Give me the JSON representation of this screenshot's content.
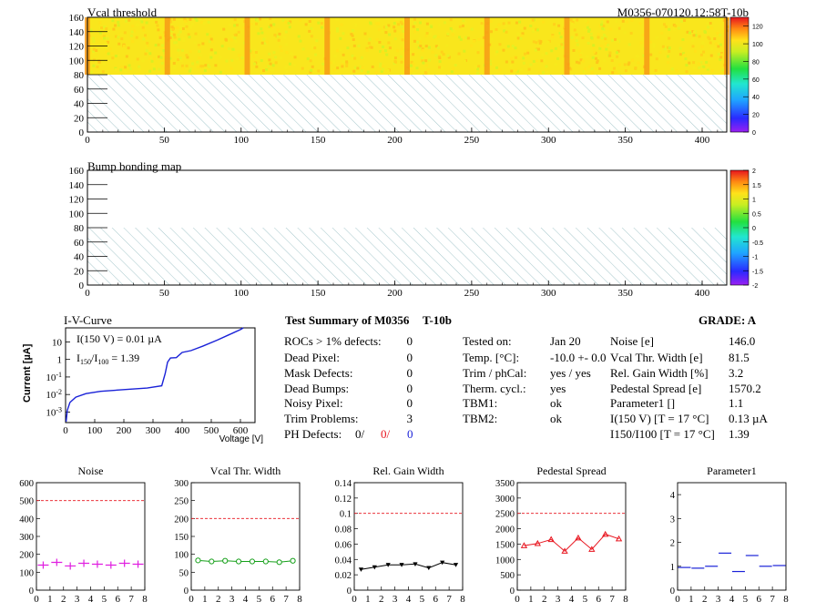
{
  "maps": [
    {
      "title": "Vcal threshold",
      "id_label": "M0356-070120.12:58T-10b",
      "x_ticks": [
        "0",
        "50",
        "100",
        "150",
        "200",
        "250",
        "300",
        "350",
        "400"
      ],
      "y_ticks": [
        "0",
        "20",
        "40",
        "60",
        "80",
        "100",
        "120",
        "140",
        "160"
      ],
      "xlim": [
        0,
        416
      ],
      "ylim": [
        0,
        160
      ],
      "hatch_below": 80,
      "roc_boundaries": [
        52,
        104,
        156,
        208,
        260,
        312,
        364
      ],
      "palette_labels": [
        "0",
        "20",
        "40",
        "60",
        "80",
        "100",
        "120"
      ],
      "palette_range": [
        0,
        130
      ],
      "level": 100,
      "colors": {
        "low": "#9a1ff2",
        "high": "#e8141e"
      }
    },
    {
      "title": "Bump bonding map",
      "x_ticks": [
        "0",
        "50",
        "100",
        "150",
        "200",
        "250",
        "300",
        "350",
        "400"
      ],
      "y_ticks": [
        "0",
        "20",
        "40",
        "60",
        "80",
        "100",
        "120",
        "140",
        "160"
      ],
      "xlim": [
        0,
        416
      ],
      "ylim": [
        0,
        160
      ],
      "hatch_below": 80,
      "palette_labels": [
        "-2",
        "-1.5",
        "-1",
        "-0.5",
        "0",
        "0.5",
        "1",
        "1.5",
        "2"
      ],
      "palette_range": [
        -2,
        2
      ]
    }
  ],
  "iv": {
    "title": "I-V-Curve",
    "ylabel": "Current [µA]",
    "xlabel": "Voltage [V]",
    "x_ticks": [
      "0",
      "100",
      "200",
      "300",
      "400",
      "500",
      "600"
    ],
    "y_ticks": [
      "10^-3",
      "10^-2",
      "10^-1",
      "1",
      "10"
    ],
    "note1": "I(150 V) = 0.01 µA",
    "note2_main": "I",
    "note2_sub1": "150",
    "note2_mid": "/I",
    "note2_sub2": "100",
    "note2_val": "=  1.39"
  },
  "summary": {
    "heading": "Test Summary of M0356",
    "trim_label": "T-10b",
    "grade": "GRADE:  A",
    "left": [
      {
        "label": "ROCs > 1% defects:",
        "value": "0"
      },
      {
        "label": "Dead Pixel:",
        "value": "0"
      },
      {
        "label": "Mask Defects:",
        "value": "0"
      },
      {
        "label": "Dead Bumps:",
        "value": "0"
      },
      {
        "label": "Noisy Pixel:",
        "value": "0"
      },
      {
        "label": "Trim Problems:",
        "value": "3"
      }
    ],
    "ph_label": "PH Defects:",
    "ph_values": [
      "0/",
      "0/",
      "0"
    ],
    "middle": [
      {
        "label": "Tested on:",
        "value": "Jan 20"
      },
      {
        "label": "Temp. [°C]:",
        "value": "-10.0 +- 0.0"
      },
      {
        "label": "Trim / phCal:",
        "value": "yes / yes"
      },
      {
        "label": "Therm. cycl.:",
        "value": "yes"
      },
      {
        "label": "TBM1:",
        "value": "ok"
      },
      {
        "label": "TBM2:",
        "value": "ok"
      }
    ],
    "right": [
      {
        "label": "Noise [e]",
        "value": "146.0"
      },
      {
        "label": "Vcal Thr. Width [e]",
        "value": "81.5"
      },
      {
        "label": "Rel. Gain Width [%]",
        "value": "3.2"
      },
      {
        "label": "Pedestal Spread [e]",
        "value": "1570.2"
      },
      {
        "label": "Parameter1 []",
        "value": "1.1"
      },
      {
        "label": "I(150 V) [T = 17 °C]",
        "value": "0.13 µA"
      },
      {
        "label": "I150/I100  [T = 17 °C]",
        "value": "1.39"
      }
    ]
  },
  "chart_data": [
    {
      "type": "scatter",
      "title": "Noise",
      "x": [
        0.5,
        1.5,
        2.5,
        3.5,
        4.5,
        5.5,
        6.5,
        7.5
      ],
      "y": [
        140,
        155,
        135,
        150,
        145,
        140,
        150,
        145
      ],
      "xlim": [
        0,
        8
      ],
      "ylim": [
        0,
        600
      ],
      "x_ticks": [
        "0",
        "1",
        "2",
        "3",
        "4",
        "5",
        "6",
        "7",
        "8"
      ],
      "y_ticks": [
        "0",
        "100",
        "200",
        "300",
        "400",
        "500",
        "600"
      ],
      "limit": 500,
      "color": "#e01ee0",
      "marker": "plus"
    },
    {
      "type": "line",
      "title": "Vcal Thr. Width",
      "x": [
        0.5,
        1.5,
        2.5,
        3.5,
        4.5,
        5.5,
        6.5,
        7.5
      ],
      "y": [
        83,
        80,
        82,
        80,
        80,
        80,
        78,
        82
      ],
      "xlim": [
        0,
        8
      ],
      "ylim": [
        0,
        300
      ],
      "x_ticks": [
        "0",
        "1",
        "2",
        "3",
        "4",
        "5",
        "6",
        "7",
        "8"
      ],
      "y_ticks": [
        "0",
        "50",
        "100",
        "150",
        "200",
        "250",
        "300"
      ],
      "limit": 200,
      "color": "#16a01a",
      "marker": "circle"
    },
    {
      "type": "line",
      "title": "Rel. Gain Width",
      "x": [
        0.5,
        1.5,
        2.5,
        3.5,
        4.5,
        5.5,
        6.5,
        7.5
      ],
      "y": [
        0.027,
        0.03,
        0.033,
        0.033,
        0.034,
        0.029,
        0.036,
        0.033
      ],
      "xlim": [
        0,
        8
      ],
      "ylim": [
        0,
        0.14
      ],
      "x_ticks": [
        "0",
        "1",
        "2",
        "3",
        "4",
        "5",
        "6",
        "7",
        "8"
      ],
      "y_ticks": [
        "0",
        "0.02",
        "0.04",
        "0.06",
        "0.08",
        "0.1",
        "0.12",
        "0.14"
      ],
      "limit": 0.1,
      "color": "#000000",
      "marker": "triangle-down"
    },
    {
      "type": "line",
      "title": "Pedestal Spread",
      "x": [
        0.5,
        1.5,
        2.5,
        3.5,
        4.5,
        5.5,
        6.5,
        7.5
      ],
      "y": [
        1450,
        1520,
        1650,
        1270,
        1700,
        1330,
        1820,
        1670
      ],
      "xlim": [
        0,
        8
      ],
      "ylim": [
        0,
        3500
      ],
      "x_ticks": [
        "0",
        "1",
        "2",
        "3",
        "4",
        "5",
        "6",
        "7",
        "8"
      ],
      "y_ticks": [
        "0",
        "500",
        "1000",
        "1500",
        "2000",
        "2500",
        "3000",
        "3500"
      ],
      "limit": 2500,
      "color": "#e8141e",
      "marker": "triangle-up"
    },
    {
      "type": "scatter",
      "title": "Parameter1",
      "x": [
        0.5,
        1.5,
        2.5,
        3.5,
        4.5,
        5.5,
        6.5,
        7.5
      ],
      "y": [
        0.95,
        0.92,
        1.0,
        1.55,
        0.78,
        1.45,
        1.0,
        1.03
      ],
      "xlim": [
        0,
        8
      ],
      "ylim": [
        0,
        4.5
      ],
      "x_ticks": [
        "0",
        "1",
        "2",
        "3",
        "4",
        "5",
        "6",
        "7",
        "8"
      ],
      "y_ticks": [
        "0",
        "1",
        "2",
        "3",
        "4"
      ],
      "color": "#1a22d8",
      "marker": "hbar"
    }
  ]
}
